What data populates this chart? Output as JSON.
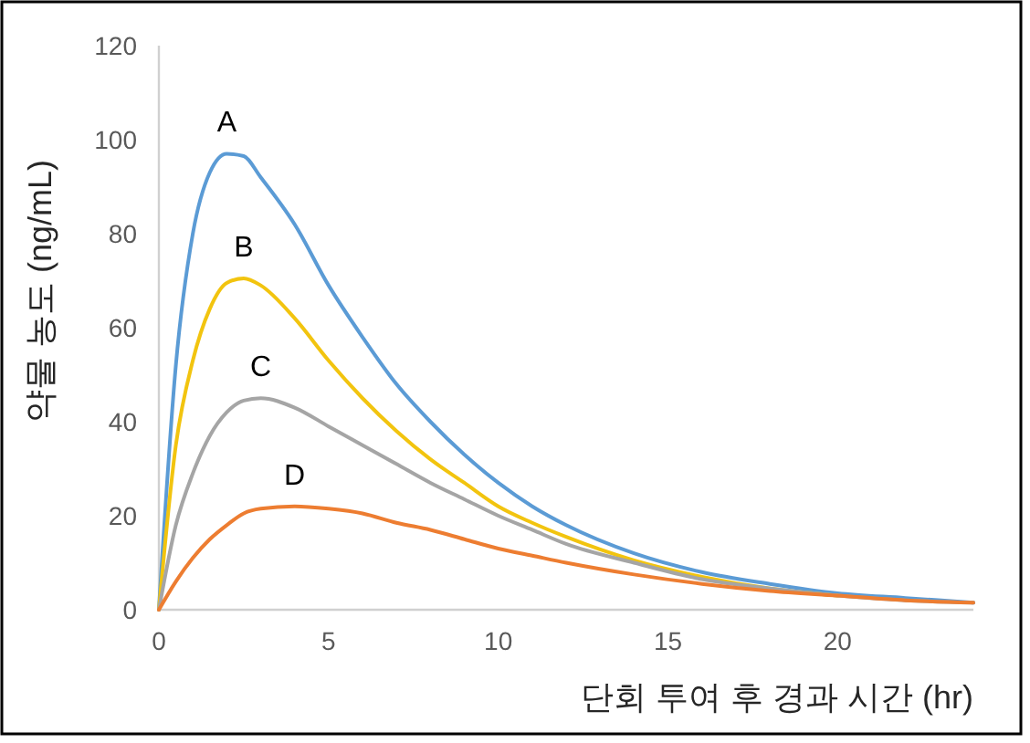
{
  "chart_data": {
    "type": "line",
    "xlabel": "단회 투여 후 경과 시간 (hr)",
    "ylabel": "약물 농도 (ng/mL)",
    "xlim": [
      0,
      24
    ],
    "ylim": [
      0,
      120
    ],
    "xticks": [
      0,
      5,
      10,
      15,
      20
    ],
    "yticks": [
      0,
      20,
      40,
      60,
      80,
      100,
      120
    ],
    "grid": false,
    "marker": "none",
    "line_style": "solid",
    "x": [
      0,
      0.5,
      1,
      1.5,
      2,
      2.5,
      3,
      4,
      5,
      6,
      7,
      8,
      9,
      10,
      11,
      12,
      14,
      16,
      18,
      20,
      22,
      24
    ],
    "series": [
      {
        "name": "A",
        "color": "#5b9bd5",
        "values": [
          0,
          52,
          80,
          93,
          97,
          96.5,
          92,
          82,
          69,
          58,
          48,
          40,
          33,
          27,
          22,
          18,
          12,
          8,
          5.5,
          3.5,
          2.5,
          1.5
        ]
      },
      {
        "name": "B",
        "color": "#f2c40f",
        "values": [
          0,
          35,
          53,
          64,
          69.5,
          70.5,
          69,
          62,
          53,
          45,
          38,
          32,
          27,
          22,
          18.5,
          15.5,
          10.5,
          7,
          4.5,
          3,
          null,
          null
        ]
      },
      {
        "name": "C",
        "color": "#a5a5a5",
        "values": [
          0,
          18,
          29,
          37,
          42,
          44.5,
          45,
          43,
          39,
          35,
          31,
          27,
          23.5,
          20,
          17,
          14,
          10,
          6.5,
          4.5,
          3,
          2,
          1.5
        ]
      },
      {
        "name": "D",
        "color": "#ed7d31",
        "values": [
          0,
          6,
          11,
          15,
          18,
          20.5,
          21.5,
          22,
          21.5,
          20.5,
          18.5,
          17,
          15,
          13,
          11.5,
          10,
          7.5,
          5.5,
          4,
          3,
          2,
          1.5
        ]
      }
    ]
  }
}
